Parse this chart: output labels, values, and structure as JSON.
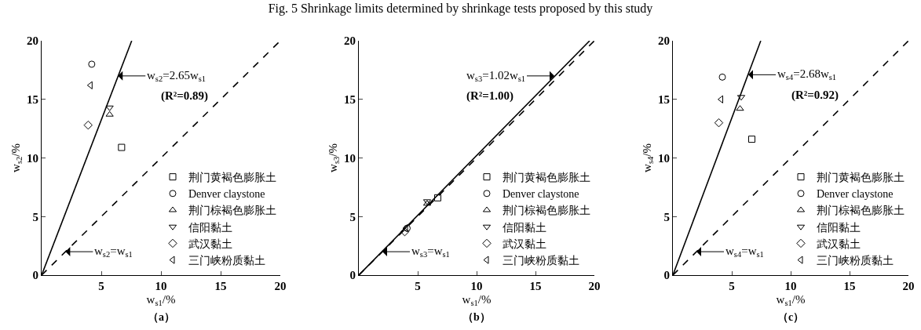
{
  "chart_data": [
    {
      "type": "scatter",
      "xlabel": "w$_{s1}$/%",
      "ylabel": "w$_{s2}$/%",
      "xlim": [
        0,
        20
      ],
      "ylim": [
        0,
        20
      ],
      "xticks": [
        5,
        10,
        15,
        20
      ],
      "yticks": [
        0,
        5,
        10,
        15,
        20
      ],
      "grid": false,
      "legend": "bottom right",
      "series": [
        {
          "name": "荆门黄褐色膨胀土",
          "color": "#000000",
          "marker": "square",
          "x": [
            6.7
          ],
          "values": [
            10.9
          ]
        },
        {
          "name": "Denver claystone",
          "color": "#000000",
          "marker": "circle",
          "x": [
            4.2
          ],
          "values": [
            18.0
          ]
        },
        {
          "name": "荆门棕褐色膨胀土",
          "color": "#000000",
          "marker": "triangle",
          "x": [
            5.7
          ],
          "values": [
            13.7
          ]
        },
        {
          "name": "信阳黏土",
          "color": "#000000",
          "marker": "triangle-down",
          "x": [
            5.7
          ],
          "values": [
            14.3
          ]
        },
        {
          "name": "武汉黏土",
          "color": "#000000",
          "marker": "diamond",
          "x": [
            3.9
          ],
          "values": [
            12.8
          ]
        },
        {
          "name": "三门峡粉质黏土",
          "color": "#000000",
          "marker": "triangle-left",
          "x": [
            4.1
          ],
          "values": [
            16.2
          ]
        },
        {
          "type": "line",
          "color": "#000000",
          "line_style": "solid",
          "marker": "none",
          "x": [
            0,
            7.55
          ],
          "values": [
            0,
            20
          ]
        },
        {
          "type": "line",
          "color": "#000000",
          "line_style": "dashed",
          "marker": "none",
          "x": [
            0,
            20
          ],
          "values": [
            0,
            20
          ]
        }
      ],
      "annotations": [
        "（a）",
        {
          "text": "w$_{s2}$=2.65w$_{s1}$",
          "x": 6.4,
          "y": 17.0
        },
        "(R²=0.89)",
        {
          "text": "w$_{s2}$=w$_{s1}$",
          "x": 2.0,
          "y": 2.0
        }
      ]
    },
    {
      "type": "scatter",
      "title": "Fig. 5 Shrinkage limits determined by shrinkage tests proposed by this study",
      "xlabel": "w$_{s1}$/%",
      "ylabel": "w$_{s3}$/%",
      "xlim": [
        0,
        20
      ],
      "ylim": [
        0,
        20
      ],
      "xticks": [
        5,
        10,
        15,
        20
      ],
      "yticks": [
        0,
        5,
        10,
        15,
        20
      ],
      "grid": false,
      "legend": "bottom right",
      "series": [
        {
          "name": "荆门黄褐色膨胀土",
          "color": "#000000",
          "marker": "square",
          "x": [
            6.7
          ],
          "values": [
            6.6
          ]
        },
        {
          "name": "Denver claystone",
          "color": "#000000",
          "marker": "circle",
          "x": [
            4.1
          ],
          "values": [
            4.0
          ]
        },
        {
          "name": "荆门棕褐色膨胀土",
          "color": "#000000",
          "marker": "triangle",
          "x": [
            5.8
          ],
          "values": [
            6.1
          ]
        },
        {
          "name": "信阳黏土",
          "color": "#000000",
          "marker": "triangle-down",
          "x": [
            5.8
          ],
          "values": [
            6.3
          ]
        },
        {
          "name": "武汉黏土",
          "color": "#000000",
          "marker": "diamond",
          "x": [
            3.9
          ],
          "values": [
            3.7
          ]
        },
        {
          "name": "三门峡粉质黏土",
          "color": "#000000",
          "marker": "triangle-left",
          "x": [
            4.0
          ],
          "values": [
            4.0
          ]
        },
        {
          "type": "line",
          "color": "#000000",
          "line_style": "solid",
          "marker": "none",
          "x": [
            0,
            19.6
          ],
          "values": [
            0,
            20
          ]
        },
        {
          "type": "line",
          "color": "#000000",
          "line_style": "dashed",
          "marker": "none",
          "x": [
            0,
            20
          ],
          "values": [
            0,
            20
          ]
        }
      ],
      "annotations": [
        "（b）",
        {
          "text": "w$_{s3}$=1.02w$_{s1}$",
          "x": 16.6,
          "y": 17.0
        },
        "(R²=1.00)",
        {
          "text": "w$_{s3}$=w$_{s1}$",
          "x": 2.0,
          "y": 2.0
        }
      ]
    },
    {
      "type": "scatter",
      "xlabel": "w$_{s1}$/%",
      "ylabel": "w$_{s4}$/%",
      "xlim": [
        0,
        20
      ],
      "ylim": [
        0,
        20
      ],
      "xticks": [
        5,
        10,
        15,
        20
      ],
      "yticks": [
        0,
        5,
        10,
        15,
        20
      ],
      "grid": false,
      "legend": "bottom right",
      "series": [
        {
          "name": "荆门黄褐色膨胀土",
          "color": "#000000",
          "marker": "square",
          "x": [
            6.7
          ],
          "values": [
            11.6
          ]
        },
        {
          "name": "Denver claystone",
          "color": "#000000",
          "marker": "circle",
          "x": [
            4.2
          ],
          "values": [
            16.9
          ]
        },
        {
          "name": "荆门棕褐色膨胀土",
          "color": "#000000",
          "marker": "triangle",
          "x": [
            5.7
          ],
          "values": [
            14.2
          ]
        },
        {
          "name": "信阳黏土",
          "color": "#000000",
          "marker": "triangle-down",
          "x": [
            5.8
          ],
          "values": [
            15.2
          ]
        },
        {
          "name": "武汉黏土",
          "color": "#000000",
          "marker": "diamond",
          "x": [
            3.9
          ],
          "values": [
            13.0
          ]
        },
        {
          "name": "三门峡粉质黏土",
          "color": "#000000",
          "marker": "triangle-left",
          "x": [
            4.1
          ],
          "values": [
            15.0
          ]
        },
        {
          "type": "line",
          "color": "#000000",
          "line_style": "solid",
          "marker": "none",
          "x": [
            0,
            7.46
          ],
          "values": [
            0,
            20
          ]
        },
        {
          "type": "line",
          "color": "#000000",
          "line_style": "dashed",
          "marker": "none",
          "x": [
            0,
            20
          ],
          "values": [
            0,
            20
          ]
        }
      ],
      "annotations": [
        "（c）",
        {
          "text": "w$_{s4}$=2.68w$_{s1}$",
          "x": 6.4,
          "y": 17.1
        },
        "(R²=0.92)",
        {
          "text": "w$_{s4}$=w$_{s1}$",
          "x": 2.0,
          "y": 2.0
        }
      ]
    }
  ]
}
